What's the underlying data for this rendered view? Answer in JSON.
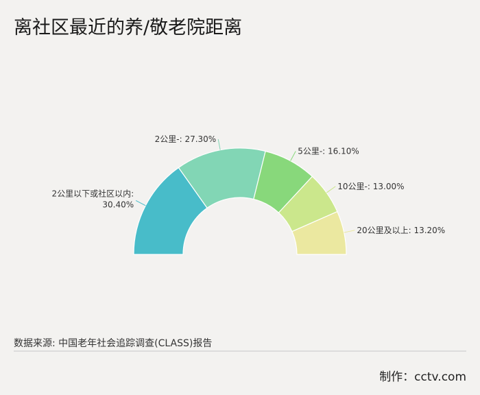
{
  "title": "离社区最近的养/敬老院距离",
  "source": "数据来源: 中国老年社会追踪调查(CLASS)报告",
  "credit": "制作：cctv.com",
  "chart_data": {
    "type": "pie",
    "variant": "half-donut",
    "title": "离社区最近的养/敬老院距离",
    "categories": [
      "2公里以下或社区以内",
      "2公里-",
      "5公里-",
      "10公里-",
      "20公里及以上"
    ],
    "values": [
      30.4,
      27.3,
      16.1,
      13.0,
      13.2
    ],
    "labels": [
      "2公里以下或社区以内: 30.40%",
      "2公里-: 27.30%",
      "5公里-: 16.10%",
      "10公里-: 13.00%",
      "20公里及以上: 13.20%"
    ],
    "colors": [
      "#48bcc9",
      "#82d6b5",
      "#88d87b",
      "#cbe78c",
      "#ebe8a0"
    ]
  }
}
